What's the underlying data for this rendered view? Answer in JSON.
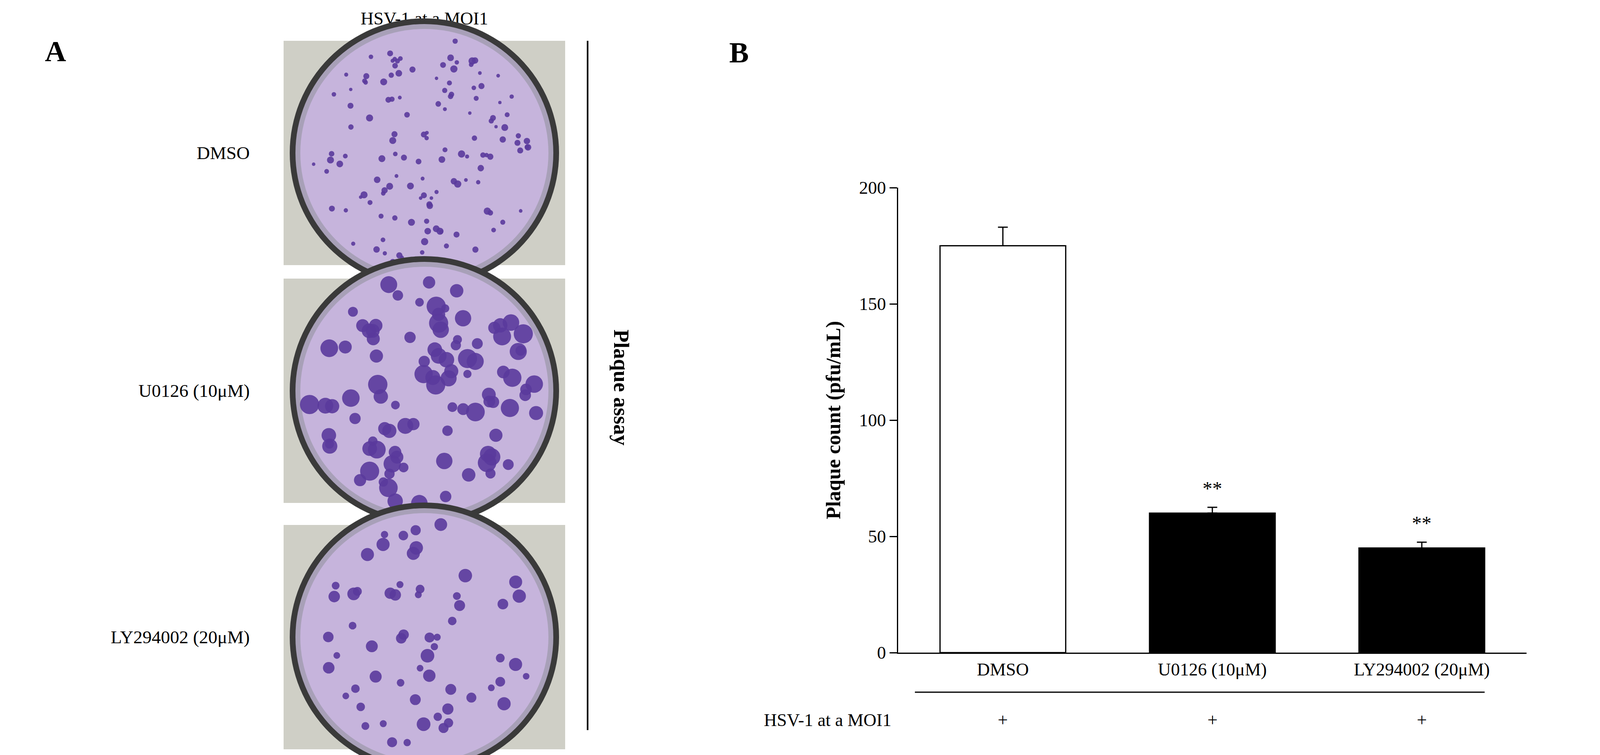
{
  "panel_a": {
    "panel_label": "A",
    "title": "HSV-1 at a MOI1",
    "side_label": "Plaque assay",
    "rows": [
      "DMSO",
      "U0126 (10μM)",
      "LY294002 (20μM)"
    ]
  },
  "chart_data": {
    "type": "bar",
    "panel_label": "B",
    "categories": [
      "DMSO",
      "U0126 (10μM)",
      "LY294002 (20μM)"
    ],
    "values": [
      175,
      60,
      45
    ],
    "errors": [
      8,
      2.5,
      2.5
    ],
    "colors": [
      "#ffffff",
      "#000000",
      "#000000"
    ],
    "ylabel": "Plaque count (pfu/mL)",
    "ylim": [
      0,
      200
    ],
    "yticks": [
      0,
      50,
      100,
      150,
      200
    ],
    "grid": false,
    "annotations": [
      {
        "category": "U0126 (10μM)",
        "text": "**"
      },
      {
        "category": "LY294002 (20μM)",
        "text": "**"
      }
    ],
    "condition": {
      "label": "HSV-1 at a MOI1",
      "values": [
        "+",
        "+",
        "+"
      ]
    }
  }
}
